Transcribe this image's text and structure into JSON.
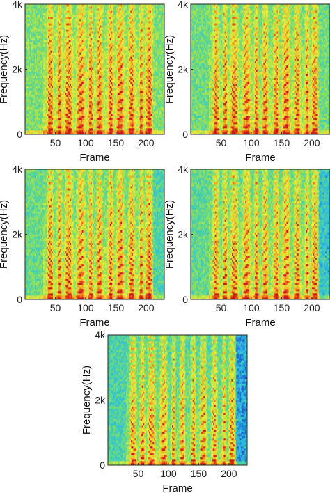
{
  "figure": {
    "colormap": [
      "#1e5fd0",
      "#2ab5e6",
      "#46d0b0",
      "#8fe05a",
      "#e8ee3a",
      "#f7b52a",
      "#ea5a1e",
      "#c8141a"
    ]
  },
  "chart_data": [
    {
      "type": "heatmap",
      "xlabel": "Frame",
      "ylabel": "Frequency(Hz)",
      "xlim": [
        0,
        230
      ],
      "ylim": [
        0,
        4000
      ],
      "xticks": [
        50,
        100,
        150,
        200
      ],
      "xtick_labels": [
        "50",
        "100",
        "150",
        "200"
      ],
      "yticks": [
        0,
        2000,
        4000
      ],
      "ytick_labels": [
        "0",
        "2k",
        "4k"
      ],
      "speech_onset_frame": 30,
      "speech_offset_frame": 210,
      "background_level": 0.4,
      "voiced_segments": [
        [
          35,
          48
        ],
        [
          52,
          62
        ],
        [
          64,
          80
        ],
        [
          84,
          100
        ],
        [
          104,
          113
        ],
        [
          117,
          129
        ],
        [
          136,
          147
        ],
        [
          150,
          165
        ],
        [
          170,
          182
        ],
        [
          188,
          196
        ],
        [
          198,
          212
        ]
      ]
    },
    {
      "type": "heatmap",
      "xlabel": "Frame",
      "ylabel": "Frequency(Hz)",
      "xlim": [
        0,
        230
      ],
      "ylim": [
        0,
        4000
      ],
      "xticks": [
        50,
        100,
        150,
        200
      ],
      "xtick_labels": [
        "50",
        "100",
        "150",
        "200"
      ],
      "yticks": [
        0,
        2000,
        4000
      ],
      "ytick_labels": [
        "0",
        "2k",
        "4k"
      ],
      "speech_onset_frame": 30,
      "speech_offset_frame": 210,
      "background_level": 0.37,
      "voiced_segments": [
        [
          35,
          48
        ],
        [
          52,
          62
        ],
        [
          64,
          80
        ],
        [
          84,
          100
        ],
        [
          104,
          113
        ],
        [
          117,
          129
        ],
        [
          136,
          147
        ],
        [
          150,
          165
        ],
        [
          170,
          182
        ],
        [
          188,
          196
        ],
        [
          198,
          212
        ]
      ]
    },
    {
      "type": "heatmap",
      "xlabel": "Frame",
      "ylabel": "Frequency(Hz)",
      "xlim": [
        0,
        230
      ],
      "ylim": [
        0,
        4000
      ],
      "xticks": [
        50,
        100,
        150,
        200
      ],
      "xtick_labels": [
        "50",
        "100",
        "150",
        "200"
      ],
      "yticks": [
        0,
        2000,
        4000
      ],
      "ytick_labels": [
        "0",
        "2k",
        "4k"
      ],
      "speech_onset_frame": 30,
      "speech_offset_frame": 210,
      "background_level": 0.36,
      "voiced_segments": [
        [
          35,
          48
        ],
        [
          52,
          62
        ],
        [
          64,
          80
        ],
        [
          84,
          100
        ],
        [
          104,
          113
        ],
        [
          117,
          129
        ],
        [
          136,
          147
        ],
        [
          150,
          165
        ],
        [
          170,
          182
        ],
        [
          188,
          196
        ],
        [
          198,
          212
        ]
      ]
    },
    {
      "type": "heatmap",
      "xlabel": "Frame",
      "ylabel": "Frequency(Hz)",
      "xlim": [
        0,
        230
      ],
      "ylim": [
        0,
        4000
      ],
      "xticks": [
        50,
        100,
        150,
        200
      ],
      "xtick_labels": [
        "50",
        "100",
        "150",
        "200"
      ],
      "yticks": [
        0,
        2000,
        4000
      ],
      "ytick_labels": [
        "0",
        "2k",
        "4k"
      ],
      "speech_onset_frame": 30,
      "speech_offset_frame": 210,
      "background_level": 0.34,
      "voiced_segments": [
        [
          35,
          48
        ],
        [
          52,
          62
        ],
        [
          64,
          80
        ],
        [
          84,
          100
        ],
        [
          104,
          113
        ],
        [
          117,
          129
        ],
        [
          136,
          147
        ],
        [
          150,
          165
        ],
        [
          170,
          182
        ],
        [
          188,
          196
        ],
        [
          198,
          212
        ]
      ]
    },
    {
      "type": "heatmap",
      "xlabel": "Frame",
      "ylabel": "Frequency(Hz)",
      "xlim": [
        0,
        230
      ],
      "ylim": [
        0,
        4000
      ],
      "xticks": [
        50,
        100,
        150,
        200
      ],
      "xtick_labels": [
        "50",
        "100",
        "150",
        "200"
      ],
      "yticks": [
        0,
        2000,
        4000
      ],
      "ytick_labels": [
        "0",
        "2k",
        "4k"
      ],
      "speech_onset_frame": 30,
      "speech_offset_frame": 210,
      "background_level": 0.3,
      "voiced_segments": [
        [
          35,
          48
        ],
        [
          52,
          62
        ],
        [
          64,
          80
        ],
        [
          84,
          100
        ],
        [
          104,
          113
        ],
        [
          117,
          129
        ],
        [
          136,
          147
        ],
        [
          150,
          165
        ],
        [
          170,
          182
        ],
        [
          188,
          196
        ],
        [
          198,
          212
        ]
      ]
    }
  ]
}
